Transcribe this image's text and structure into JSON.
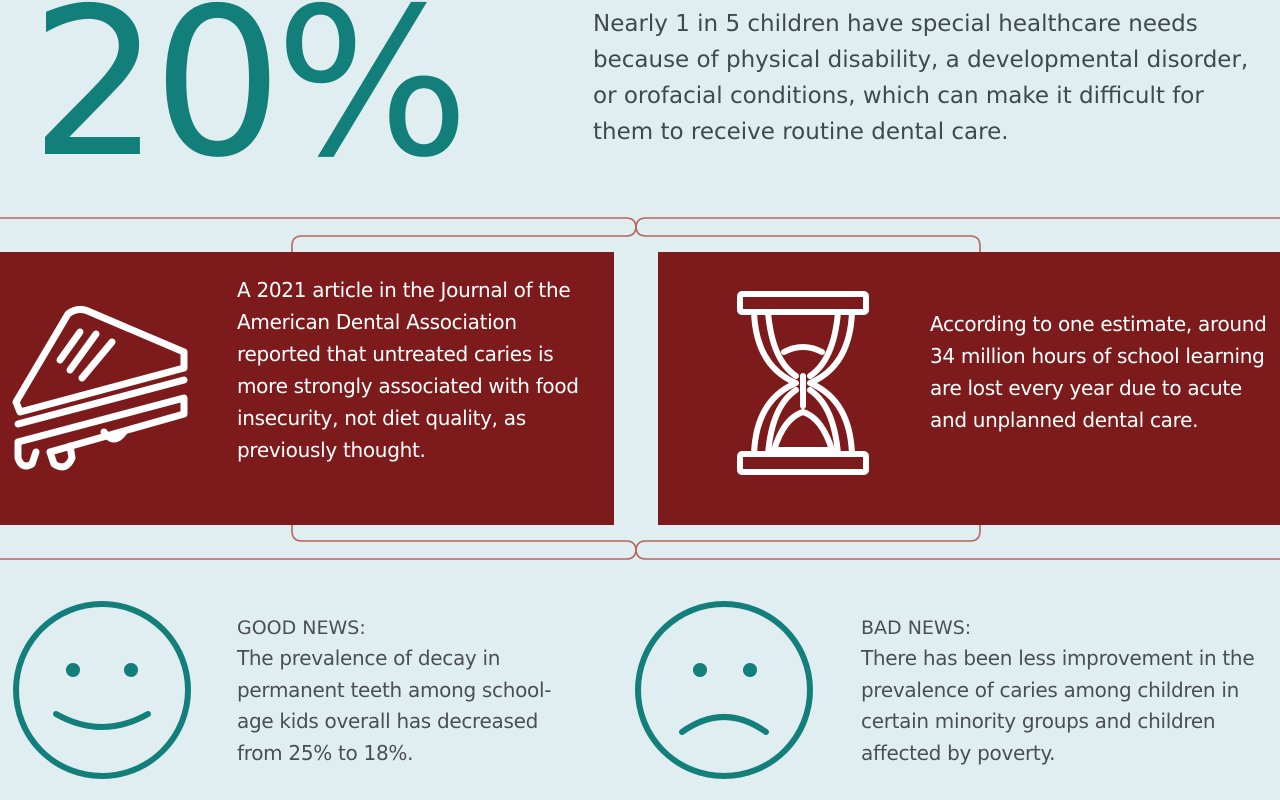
{
  "stat": {
    "value": "20%",
    "description": "Nearly 1 in 5 children have special healthcare needs because of physical disability, a developmental disorder, or orofacial conditions, which can make it difficult for them to receive routine dental care."
  },
  "cards": {
    "left": {
      "icon": "sandwich-icon",
      "text": "A 2021 article in the Journal of the American Dental Association reported that untreated caries is more strongly associated with food insecurity, not diet quality, as previously thought."
    },
    "right": {
      "icon": "hourglass-icon",
      "text": "According to one estimate, around 34 million hours of school learning are lost every year due to acute and unplanned dental care."
    }
  },
  "news": {
    "good": {
      "icon": "smiley-face-icon",
      "title": "GOOD NEWS:",
      "body": "The prevalence of decay in permanent teeth among school-age kids overall has decreased from 25% to 18%."
    },
    "bad": {
      "icon": "sad-face-icon",
      "title": "BAD NEWS:",
      "body": "There has been less improvement in the prevalence of caries among children in certain minority groups and children affected by poverty."
    }
  },
  "colors": {
    "background": "#e1eef1",
    "teal": "#127f7a",
    "maroon": "#7d1a1b",
    "text": "#4a4f52"
  }
}
